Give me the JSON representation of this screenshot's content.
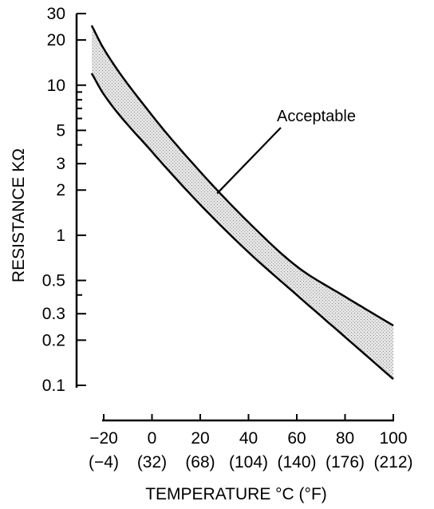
{
  "chart_data": {
    "type": "area",
    "title": "",
    "xlabel": "TEMPERATURE °C (°F)",
    "ylabel": "RESISTANCE KΩ",
    "y_scale": "log",
    "xlim": [
      -25,
      100
    ],
    "ylim": [
      0.1,
      30
    ],
    "x_ticks": [
      {
        "value": -20,
        "label": "−20",
        "sublabel": "(−4)"
      },
      {
        "value": 0,
        "label": "0",
        "sublabel": "(32)"
      },
      {
        "value": 20,
        "label": "20",
        "sublabel": "(68)"
      },
      {
        "value": 40,
        "label": "40",
        "sublabel": "(104)"
      },
      {
        "value": 60,
        "label": "60",
        "sublabel": "(140)"
      },
      {
        "value": 80,
        "label": "80",
        "sublabel": "(176)"
      },
      {
        "value": 100,
        "label": "100",
        "sublabel": "(212)"
      }
    ],
    "y_ticks": [
      {
        "value": 0.1,
        "label": "0.1"
      },
      {
        "value": 0.2,
        "label": "0.2"
      },
      {
        "value": 0.3,
        "label": "0.3"
      },
      {
        "value": 0.5,
        "label": "0.5"
      },
      {
        "value": 1,
        "label": "1"
      },
      {
        "value": 2,
        "label": "2"
      },
      {
        "value": 3,
        "label": "3"
      },
      {
        "value": 5,
        "label": "5"
      },
      {
        "value": 10,
        "label": "10"
      },
      {
        "value": 20,
        "label": "20"
      },
      {
        "value": 30,
        "label": "30"
      }
    ],
    "y_minor_ticks": [
      0.4,
      4,
      6,
      7,
      8,
      9
    ],
    "series": [
      {
        "x": [
          -25,
          -20,
          0,
          20,
          40,
          60,
          80,
          100
        ],
        "values": [
          25,
          17.5,
          6.3,
          2.65,
          1.22,
          0.62,
          0.39,
          0.25
        ]
      },
      {
        "x": [
          -25,
          -20,
          0,
          20,
          40,
          60,
          80,
          100
        ],
        "values": [
          12,
          8.7,
          3.6,
          1.6,
          0.77,
          0.4,
          0.21,
          0.11
        ]
      }
    ],
    "band_label": "Acceptable",
    "band_label_points_to": {
      "x": 27,
      "y": 1.9
    },
    "grid": false,
    "legend": "none"
  }
}
